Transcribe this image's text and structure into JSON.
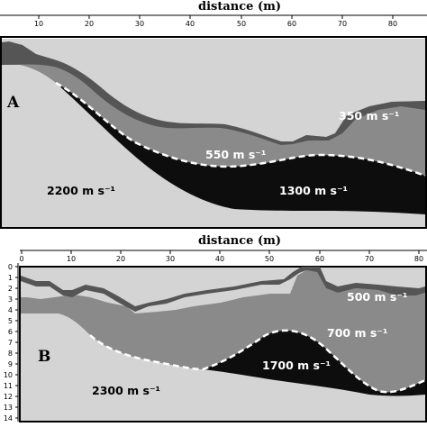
{
  "panels": [
    {
      "letter": "A",
      "axis_title": "distance (m)",
      "x_ticks": [
        "10",
        "20",
        "30",
        "40",
        "50",
        "60",
        "70",
        "80"
      ],
      "labels": {
        "v350": "350 m s⁻¹",
        "v550": "550 m s⁻¹",
        "v1300": "1300 m s⁻¹",
        "v2200": "2200 m s⁻¹"
      }
    },
    {
      "letter": "B",
      "axis_title": "distance (m)",
      "x_ticks": [
        "0",
        "10",
        "20",
        "30",
        "40",
        "50",
        "60",
        "70",
        "80"
      ],
      "y_ticks": [
        "0",
        "1",
        "2",
        "3",
        "4",
        "5",
        "6",
        "7",
        "8",
        "9",
        "10",
        "11",
        "12",
        "13",
        "14"
      ],
      "labels": {
        "v500": "500 m s⁻¹",
        "v700": "700 m s⁻¹",
        "v1700": "1700 m s⁻¹",
        "v2300": "2300 m s⁻¹"
      }
    }
  ],
  "colors": {
    "bedrock": "#d4d4d4",
    "layer_mid": "#8a8a8a",
    "layer_top": "#555555",
    "layer_fast": "#0d0d0d",
    "refractor_line": "#ffffff"
  }
}
